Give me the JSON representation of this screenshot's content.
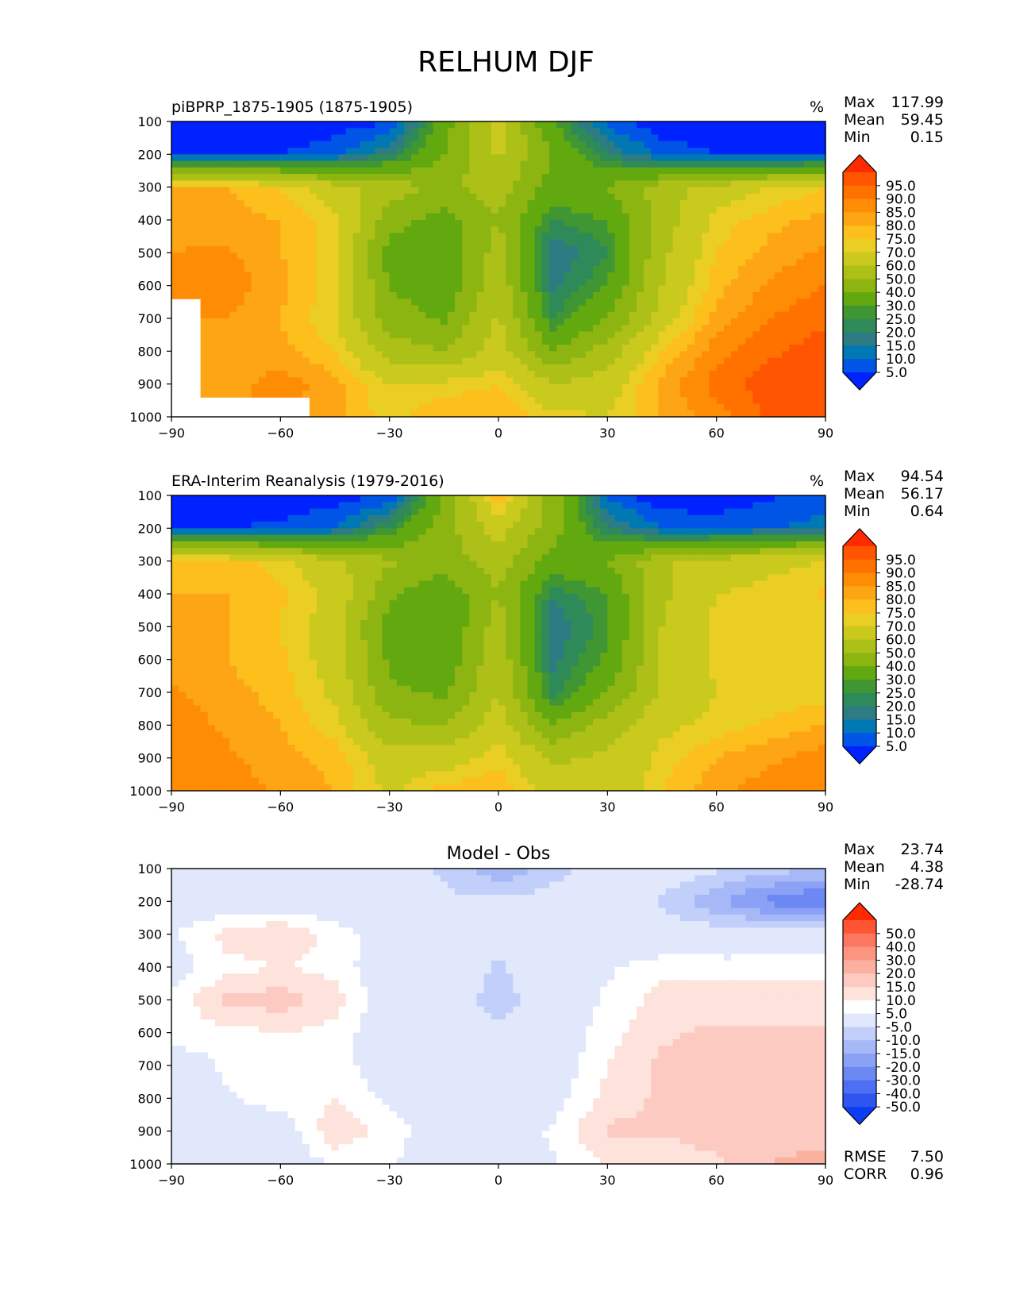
{
  "figure": {
    "title": "RELHUM DJF"
  },
  "colorscales": {
    "abs": {
      "ticks": [
        "95.0",
        "90.0",
        "85.0",
        "80.0",
        "75.0",
        "70.0",
        "60.0",
        "50.0",
        "40.0",
        "30.0",
        "25.0",
        "20.0",
        "15.0",
        "10.0",
        "5.0"
      ],
      "colors": [
        "#ff2a00",
        "#ff5500",
        "#ff7200",
        "#ff8c05",
        "#fda514",
        "#fcbf1c",
        "#ebce24",
        "#cac91e",
        "#adc018",
        "#8db512",
        "#62a80f",
        "#3f9633",
        "#2f8a5a",
        "#2d7c84",
        "#0078b4",
        "#0055e6",
        "#0022ff"
      ]
    },
    "diff": {
      "ticks": [
        "50.0",
        "40.0",
        "30.0",
        "20.0",
        "15.0",
        "10.0",
        "5.0",
        "-5.0",
        "-10.0",
        "-15.0",
        "-20.0",
        "-30.0",
        "-40.0",
        "-50.0"
      ],
      "colors": [
        "#ff2a00",
        "#ff5533",
        "#fd7760",
        "#fc9580",
        "#fcb0a0",
        "#fccac0",
        "#fde3dc",
        "#ffffff",
        "#e1e8fc",
        "#c2cffa",
        "#a7b8f7",
        "#8aa1f5",
        "#6c88f3",
        "#4e6ff1",
        "#2f55ef",
        "#0b3df4"
      ]
    }
  },
  "panels": [
    {
      "id": "model",
      "title": "piBPRP_1875-1905 (1875-1905)",
      "units": "%",
      "stats": [
        {
          "label": "Max",
          "value": "117.99"
        },
        {
          "label": "Mean",
          "value": "59.45"
        },
        {
          "label": "Min",
          "value": "0.15"
        }
      ],
      "scale": "abs"
    },
    {
      "id": "obs",
      "title": "ERA-Interim Reanalysis (1979-2016)",
      "units": "%",
      "stats": [
        {
          "label": "Max",
          "value": "94.54"
        },
        {
          "label": "Mean",
          "value": "56.17"
        },
        {
          "label": "Min",
          "value": "0.64"
        }
      ],
      "scale": "abs"
    },
    {
      "id": "diff",
      "title": "Model - Obs",
      "units": "",
      "stats": [
        {
          "label": "Max",
          "value": "23.74"
        },
        {
          "label": "Mean",
          "value": "4.38"
        },
        {
          "label": "Min",
          "value": "-28.74"
        }
      ],
      "scale": "diff",
      "footer": [
        {
          "label": "RMSE",
          "value": "7.50"
        },
        {
          "label": "CORR",
          "value": "0.96"
        }
      ]
    }
  ],
  "chart_data": {
    "type": "heatmap",
    "title": "RELHUM DJF",
    "x": [
      -90,
      -75,
      -60,
      -45,
      -30,
      -15,
      0,
      15,
      30,
      45,
      60,
      75,
      90
    ],
    "y": [
      100,
      200,
      300,
      400,
      500,
      600,
      700,
      800,
      900,
      1000
    ],
    "xlim": [
      -90,
      90
    ],
    "ylim": [
      100,
      1000
    ],
    "xticks": [
      -90,
      -60,
      -30,
      0,
      30,
      60,
      90
    ],
    "xtick_labels": [
      "−90",
      "−60",
      "−30",
      "0",
      "30",
      "60",
      "90"
    ],
    "yticks": [
      100,
      200,
      300,
      400,
      500,
      600,
      700,
      800,
      900,
      1000
    ],
    "ytick_labels": [
      "100",
      "200",
      "300",
      "400",
      "500",
      "600",
      "700",
      "800",
      "900",
      "1000"
    ],
    "yaxis_inverted": true,
    "series": [
      {
        "name": "piBPRP_1875-1905 (1875-1905)",
        "values": [
          [
            1,
            1,
            1,
            2,
            4,
            35,
            65,
            30,
            8,
            1,
            1,
            1,
            1
          ],
          [
            4,
            4,
            5,
            8,
            20,
            40,
            62,
            40,
            20,
            8,
            5,
            4,
            5
          ],
          [
            80,
            80,
            75,
            65,
            55,
            48,
            55,
            35,
            40,
            55,
            65,
            70,
            75
          ],
          [
            82,
            82,
            80,
            72,
            45,
            35,
            50,
            25,
            30,
            55,
            72,
            78,
            82
          ],
          [
            85,
            86,
            80,
            72,
            35,
            30,
            55,
            15,
            25,
            58,
            75,
            82,
            86
          ],
          [
            90,
            88,
            82,
            72,
            40,
            32,
            58,
            18,
            30,
            60,
            78,
            86,
            90
          ],
          [
            null,
            85,
            80,
            70,
            45,
            38,
            62,
            25,
            40,
            65,
            82,
            90,
            94
          ],
          [
            null,
            80,
            82,
            75,
            55,
            50,
            65,
            40,
            55,
            75,
            88,
            94,
            98
          ],
          [
            null,
            82,
            88,
            82,
            70,
            72,
            75,
            60,
            65,
            82,
            92,
            98,
            100
          ],
          [
            null,
            null,
            null,
            82,
            72,
            80,
            80,
            72,
            70,
            80,
            88,
            96,
            100
          ]
        ]
      },
      {
        "name": "ERA-Interim Reanalysis (1979-2016)",
        "values": [
          [
            1,
            1,
            1,
            2,
            5,
            40,
            80,
            45,
            8,
            1,
            1,
            4,
            8
          ],
          [
            5,
            5,
            6,
            10,
            25,
            45,
            65,
            45,
            20,
            10,
            8,
            10,
            12
          ],
          [
            78,
            78,
            72,
            62,
            52,
            45,
            55,
            35,
            40,
            58,
            65,
            68,
            70
          ],
          [
            80,
            80,
            76,
            68,
            42,
            32,
            50,
            22,
            30,
            58,
            70,
            72,
            76
          ],
          [
            80,
            80,
            75,
            65,
            35,
            30,
            55,
            15,
            28,
            60,
            72,
            72,
            72
          ],
          [
            82,
            80,
            76,
            66,
            38,
            32,
            58,
            18,
            32,
            60,
            72,
            72,
            72
          ],
          [
            86,
            82,
            78,
            68,
            42,
            38,
            60,
            22,
            40,
            62,
            70,
            72,
            72
          ],
          [
            88,
            84,
            80,
            72,
            52,
            50,
            65,
            40,
            55,
            68,
            72,
            76,
            80
          ],
          [
            90,
            86,
            82,
            78,
            65,
            65,
            74,
            58,
            62,
            72,
            80,
            84,
            88
          ],
          [
            90,
            88,
            84,
            80,
            68,
            78,
            78,
            66,
            62,
            75,
            84,
            88,
            90
          ]
        ]
      },
      {
        "name": "Model - Obs",
        "values": [
          [
            0,
            0,
            0,
            0,
            -2,
            -6,
            -14,
            -8,
            0,
            0,
            -4,
            -8,
            -10
          ],
          [
            0,
            0,
            0,
            0,
            -2,
            -4,
            -4,
            -2,
            0,
            -6,
            -14,
            -22,
            -26
          ],
          [
            4,
            12,
            15,
            8,
            2,
            0,
            0,
            0,
            0,
            -1,
            -2,
            -2,
            0
          ],
          [
            2,
            8,
            10,
            8,
            0,
            0,
            -6,
            0,
            4,
            8,
            8,
            8,
            8
          ],
          [
            6,
            16,
            18,
            12,
            0,
            0,
            -8,
            0,
            6,
            12,
            12,
            12,
            12
          ],
          [
            8,
            8,
            10,
            8,
            0,
            0,
            -4,
            0,
            8,
            14,
            16,
            16,
            16
          ],
          [
            0,
            6,
            10,
            8,
            0,
            0,
            0,
            0,
            10,
            16,
            18,
            18,
            18
          ],
          [
            0,
            4,
            8,
            10,
            4,
            0,
            -2,
            2,
            12,
            16,
            18,
            18,
            18
          ],
          [
            0,
            0,
            0,
            14,
            8,
            0,
            0,
            6,
            16,
            16,
            18,
            18,
            18
          ],
          [
            0,
            0,
            0,
            6,
            6,
            0,
            0,
            4,
            10,
            10,
            14,
            20,
            22
          ]
        ]
      }
    ]
  }
}
